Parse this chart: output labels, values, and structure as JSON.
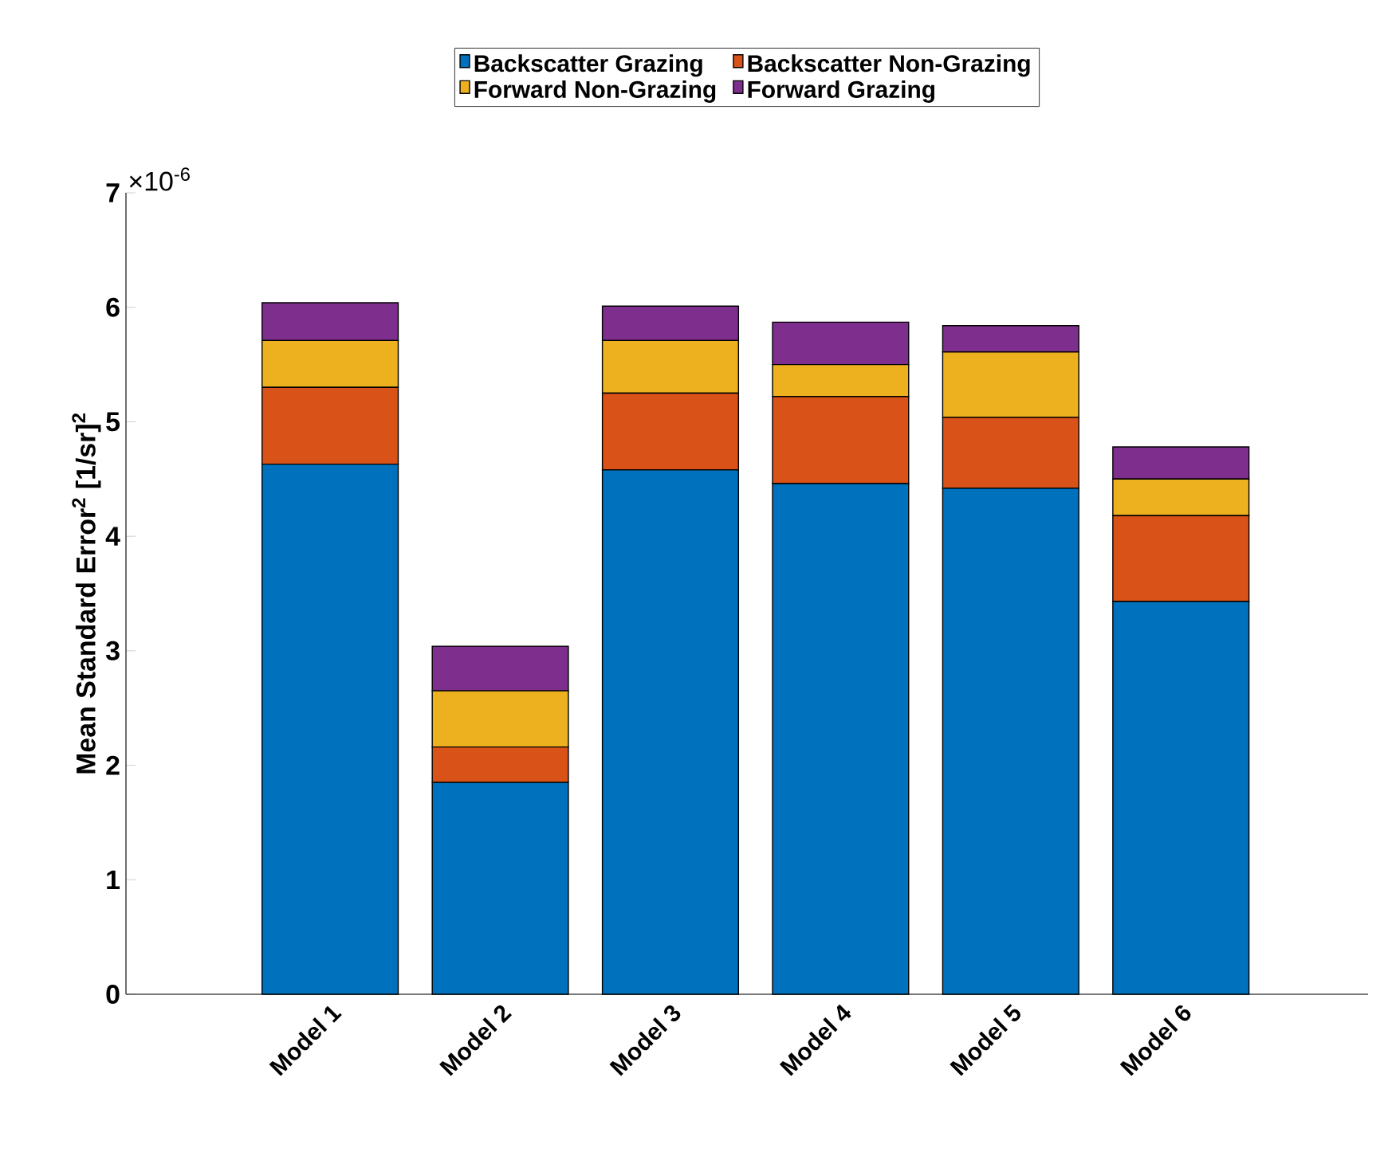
{
  "chart_data": {
    "type": "bar",
    "stacked": true,
    "ylabel": "Mean Standard Error$^{2}$ [1/sr]$^{2}$",
    "annotations": [
      "×10$^{-6}$"
    ],
    "categories": [
      "Model 1",
      "Model 2",
      "Model 3",
      "Model 4",
      "Model 5",
      "Model 6"
    ],
    "series": [
      {
        "name": "Backscatter Grazing",
        "color": "#0072bd",
        "values": [
          4.63,
          1.85,
          4.58,
          4.46,
          4.42,
          3.43
        ]
      },
      {
        "name": "Backscatter Non-Grazing",
        "color": "#d95319",
        "values": [
          0.67,
          0.31,
          0.67,
          0.76,
          0.62,
          0.75
        ]
      },
      {
        "name": "Forward Non-Grazing",
        "color": "#edb120",
        "values": [
          0.41,
          0.49,
          0.46,
          0.28,
          0.57,
          0.32
        ]
      },
      {
        "name": "Forward Grazing",
        "color": "#7e2f8e",
        "values": [
          0.33,
          0.39,
          0.3,
          0.37,
          0.23,
          0.28
        ]
      }
    ],
    "ylim": [
      0,
      7
    ],
    "yticks": [
      0,
      1,
      2,
      3,
      4,
      5,
      6,
      7
    ],
    "legend": "top",
    "grid": false
  }
}
